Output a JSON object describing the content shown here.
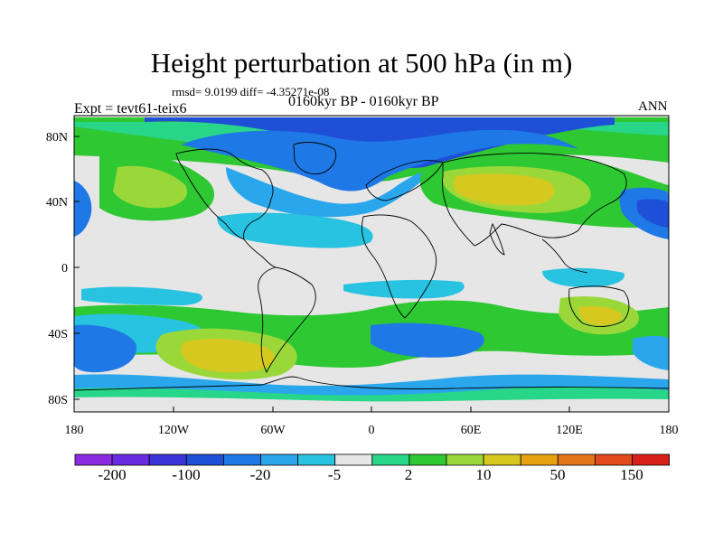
{
  "title": "Height perturbation at 500 hPa (in m)",
  "stats_line": "rmsd= 9.0199 diff= -4.35271e-08",
  "experiment": "Expt = tevt61-teix6",
  "period": "0160kyr BP - 0160kyr BP",
  "season": "ANN",
  "lat_labels": [
    "80N",
    "40N",
    "0",
    "40S",
    "80S"
  ],
  "lon_labels": [
    "180",
    "120W",
    "60W",
    "0",
    "60E",
    "120E",
    "180"
  ],
  "colorbar_labels": [
    "-200",
    "-100",
    "-20",
    "-5",
    "2",
    "10",
    "50",
    "150"
  ],
  "colorbar_colors": [
    "#8a2be2",
    "#6a2ae0",
    "#3b34d8",
    "#1f4fd6",
    "#1e78e6",
    "#2aa6ec",
    "#28c3e0",
    "#e6e6e6",
    "#28d68a",
    "#2ec832",
    "#9ad83a",
    "#d6c81e",
    "#e6a30f",
    "#e4761a",
    "#e24a1c",
    "#d8201a"
  ],
  "colors": {
    "neutral": "#e6e6e6",
    "blue_dark": "#1f4fd6",
    "blue": "#1e78e6",
    "blue_light": "#2aa6ec",
    "cyan": "#28c3e0",
    "green_light": "#28d68a",
    "green": "#2ec832",
    "yellow_green": "#9ad83a",
    "yellow": "#d6c81e"
  }
}
